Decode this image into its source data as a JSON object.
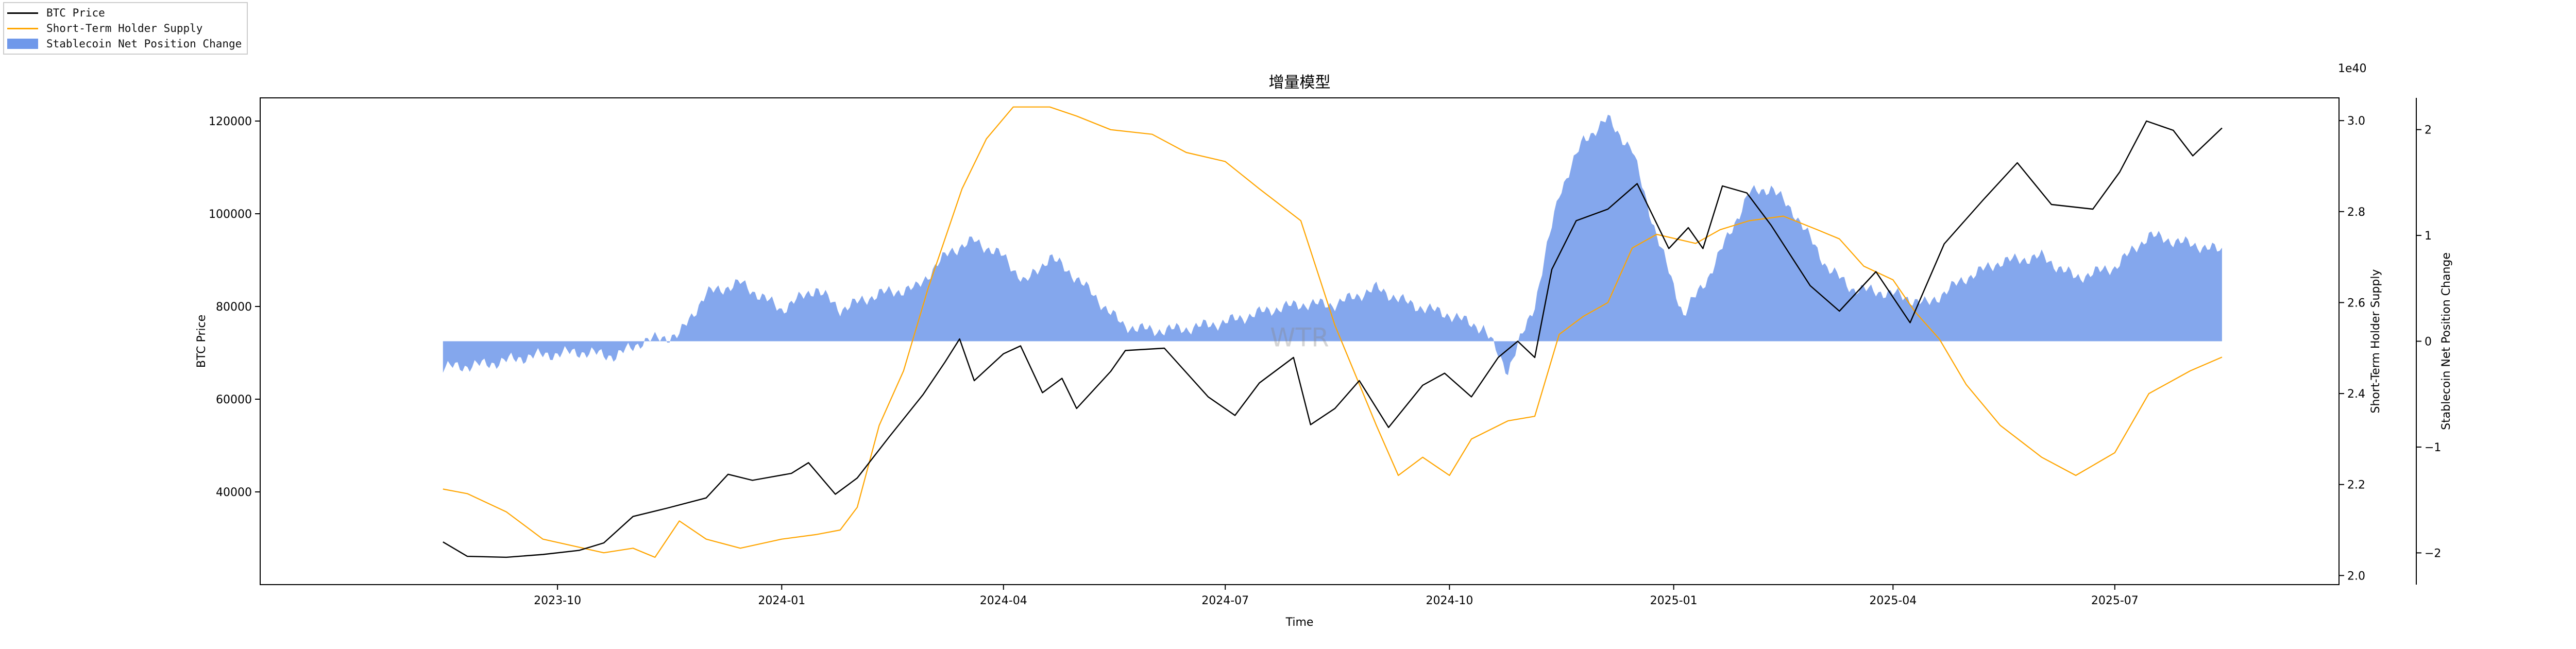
{
  "chart_data": {
    "type": "line",
    "title": "增量模型",
    "xlabel": "Time",
    "ylabel_left": "BTC Price",
    "ylabel_right1": "Short-Term Holder Supply",
    "ylabel_right2": "Stablecoin Net Position Change",
    "offset_label": "1e40",
    "x_ticks": [
      "2023-10",
      "2024-01",
      "2024-04",
      "2024-07",
      "2024-10",
      "2025-01",
      "2025-04",
      "2025-07"
    ],
    "xlim": [
      "2023-06-01",
      "2025-10-01"
    ],
    "y_left_lim": [
      20000,
      125000
    ],
    "y_left_ticks": [
      40000,
      60000,
      80000,
      100000,
      120000
    ],
    "y_right1_lim": [
      1.98,
      3.05
    ],
    "y_right1_ticks": [
      2.0,
      2.2,
      2.4,
      2.6,
      2.8,
      3.0
    ],
    "y_right2_lim": [
      -2.3,
      2.3
    ],
    "y_right2_ticks": [
      -2,
      -1,
      0,
      1,
      2
    ],
    "grid": false,
    "legend_position": "top-left",
    "watermark": "WTR",
    "series": [
      {
        "name": "BTC Price",
        "axis": "left",
        "color": "#000000",
        "points": [
          [
            "2023-08-15",
            29200
          ],
          [
            "2023-08-25",
            26100
          ],
          [
            "2023-09-10",
            25900
          ],
          [
            "2023-09-25",
            26500
          ],
          [
            "2023-10-10",
            27400
          ],
          [
            "2023-10-20",
            29000
          ],
          [
            "2023-11-01",
            34700
          ],
          [
            "2023-11-15",
            36500
          ],
          [
            "2023-12-01",
            38700
          ],
          [
            "2023-12-10",
            43800
          ],
          [
            "2023-12-20",
            42500
          ],
          [
            "2024-01-05",
            44000
          ],
          [
            "2024-01-12",
            46300
          ],
          [
            "2024-01-23",
            39500
          ],
          [
            "2024-02-01",
            43000
          ],
          [
            "2024-02-14",
            51800
          ],
          [
            "2024-02-28",
            61000
          ],
          [
            "2024-03-08",
            68000
          ],
          [
            "2024-03-14",
            73000
          ],
          [
            "2024-03-20",
            64000
          ],
          [
            "2024-04-01",
            69800
          ],
          [
            "2024-04-08",
            71500
          ],
          [
            "2024-04-17",
            61400
          ],
          [
            "2024-04-25",
            64500
          ],
          [
            "2024-05-01",
            58000
          ],
          [
            "2024-05-15",
            66000
          ],
          [
            "2024-05-21",
            70500
          ],
          [
            "2024-06-06",
            71000
          ],
          [
            "2024-06-24",
            60500
          ],
          [
            "2024-07-05",
            56500
          ],
          [
            "2024-07-15",
            63500
          ],
          [
            "2024-07-29",
            69000
          ],
          [
            "2024-08-05",
            54500
          ],
          [
            "2024-08-15",
            58000
          ],
          [
            "2024-08-25",
            64000
          ],
          [
            "2024-09-06",
            53900
          ],
          [
            "2024-09-20",
            63000
          ],
          [
            "2024-09-29",
            65600
          ],
          [
            "2024-10-10",
            60500
          ],
          [
            "2024-10-21",
            69000
          ],
          [
            "2024-10-29",
            72500
          ],
          [
            "2024-11-05",
            69000
          ],
          [
            "2024-11-12",
            88000
          ],
          [
            "2024-11-22",
            98500
          ],
          [
            "2024-12-05",
            101000
          ],
          [
            "2024-12-17",
            106500
          ],
          [
            "2024-12-30",
            92500
          ],
          [
            "2025-01-07",
            97000
          ],
          [
            "2025-01-13",
            92500
          ],
          [
            "2025-01-21",
            106000
          ],
          [
            "2025-01-31",
            104500
          ],
          [
            "2025-02-10",
            97500
          ],
          [
            "2025-02-26",
            84500
          ],
          [
            "2025-03-10",
            79000
          ],
          [
            "2025-03-25",
            87500
          ],
          [
            "2025-04-08",
            76500
          ],
          [
            "2025-04-22",
            93500
          ],
          [
            "2025-05-08",
            103000
          ],
          [
            "2025-05-22",
            111000
          ],
          [
            "2025-06-05",
            102000
          ],
          [
            "2025-06-22",
            101000
          ],
          [
            "2025-07-03",
            109000
          ],
          [
            "2025-07-14",
            120000
          ],
          [
            "2025-07-25",
            118000
          ],
          [
            "2025-08-02",
            112500
          ],
          [
            "2025-08-14",
            118500
          ]
        ]
      },
      {
        "name": "Short-Term Holder Supply",
        "axis": "right1",
        "color": "#ffa500",
        "points": [
          [
            "2023-08-15",
            2.19
          ],
          [
            "2023-08-25",
            2.18
          ],
          [
            "2023-09-10",
            2.14
          ],
          [
            "2023-09-25",
            2.08
          ],
          [
            "2023-10-20",
            2.05
          ],
          [
            "2023-11-01",
            2.06
          ],
          [
            "2023-11-10",
            2.04
          ],
          [
            "2023-11-20",
            2.12
          ],
          [
            "2023-12-01",
            2.08
          ],
          [
            "2023-12-15",
            2.06
          ],
          [
            "2024-01-01",
            2.08
          ],
          [
            "2024-01-15",
            2.09
          ],
          [
            "2024-01-25",
            2.1
          ],
          [
            "2024-02-01",
            2.15
          ],
          [
            "2024-02-10",
            2.33
          ],
          [
            "2024-02-20",
            2.45
          ],
          [
            "2024-03-01",
            2.63
          ],
          [
            "2024-03-15",
            2.85
          ],
          [
            "2024-03-25",
            2.96
          ],
          [
            "2024-04-05",
            3.03
          ],
          [
            "2024-04-20",
            3.03
          ],
          [
            "2024-05-01",
            3.01
          ],
          [
            "2024-05-15",
            2.98
          ],
          [
            "2024-06-01",
            2.97
          ],
          [
            "2024-06-15",
            2.93
          ],
          [
            "2024-07-01",
            2.91
          ],
          [
            "2024-07-15",
            2.85
          ],
          [
            "2024-08-01",
            2.78
          ],
          [
            "2024-08-15",
            2.55
          ],
          [
            "2024-09-01",
            2.33
          ],
          [
            "2024-09-10",
            2.22
          ],
          [
            "2024-09-20",
            2.26
          ],
          [
            "2024-10-01",
            2.22
          ],
          [
            "2024-10-10",
            2.3
          ],
          [
            "2024-10-25",
            2.34
          ],
          [
            "2024-11-05",
            2.35
          ],
          [
            "2024-11-15",
            2.53
          ],
          [
            "2024-11-25",
            2.57
          ],
          [
            "2024-12-05",
            2.6
          ],
          [
            "2024-12-15",
            2.72
          ],
          [
            "2024-12-25",
            2.75
          ],
          [
            "2025-01-10",
            2.73
          ],
          [
            "2025-01-20",
            2.76
          ],
          [
            "2025-02-01",
            2.78
          ],
          [
            "2025-02-15",
            2.79
          ],
          [
            "2025-03-01",
            2.76
          ],
          [
            "2025-03-10",
            2.74
          ],
          [
            "2025-03-20",
            2.68
          ],
          [
            "2025-04-01",
            2.65
          ],
          [
            "2025-04-10",
            2.58
          ],
          [
            "2025-04-20",
            2.52
          ],
          [
            "2025-05-01",
            2.42
          ],
          [
            "2025-05-15",
            2.33
          ],
          [
            "2025-06-01",
            2.26
          ],
          [
            "2025-06-15",
            2.22
          ],
          [
            "2025-07-01",
            2.27
          ],
          [
            "2025-07-15",
            2.4
          ],
          [
            "2025-08-01",
            2.45
          ],
          [
            "2025-08-14",
            2.48
          ]
        ]
      },
      {
        "name": "Stablecoin Net Position Change",
        "axis": "right2",
        "type": "area",
        "color": "#6f98ea",
        "points": [
          [
            "2023-08-15",
            -0.25
          ],
          [
            "2023-09-01",
            -0.22
          ],
          [
            "2023-09-20",
            -0.14
          ],
          [
            "2023-10-10",
            -0.1
          ],
          [
            "2023-10-25",
            -0.14
          ],
          [
            "2023-11-05",
            0.0
          ],
          [
            "2023-11-20",
            0.06
          ],
          [
            "2023-12-01",
            0.45
          ],
          [
            "2023-12-15",
            0.55
          ],
          [
            "2024-01-01",
            0.3
          ],
          [
            "2024-01-15",
            0.5
          ],
          [
            "2024-01-25",
            0.3
          ],
          [
            "2024-02-10",
            0.45
          ],
          [
            "2024-02-25",
            0.5
          ],
          [
            "2024-03-10",
            0.85
          ],
          [
            "2024-03-20",
            0.95
          ],
          [
            "2024-04-01",
            0.8
          ],
          [
            "2024-04-10",
            0.55
          ],
          [
            "2024-04-20",
            0.8
          ],
          [
            "2024-05-01",
            0.6
          ],
          [
            "2024-05-20",
            0.15
          ],
          [
            "2024-06-01",
            0.1
          ],
          [
            "2024-06-15",
            0.12
          ],
          [
            "2024-07-01",
            0.18
          ],
          [
            "2024-07-20",
            0.3
          ],
          [
            "2024-08-01",
            0.35
          ],
          [
            "2024-08-15",
            0.35
          ],
          [
            "2024-09-01",
            0.5
          ],
          [
            "2024-09-15",
            0.35
          ],
          [
            "2024-10-01",
            0.25
          ],
          [
            "2024-10-15",
            0.12
          ],
          [
            "2024-10-25",
            -0.28
          ],
          [
            "2024-11-05",
            0.35
          ],
          [
            "2024-11-15",
            1.4
          ],
          [
            "2024-11-25",
            1.9
          ],
          [
            "2024-12-05",
            2.1
          ],
          [
            "2024-12-15",
            1.8
          ],
          [
            "2024-12-25",
            1.0
          ],
          [
            "2025-01-05",
            0.25
          ],
          [
            "2025-01-15",
            0.6
          ],
          [
            "2025-02-01",
            1.4
          ],
          [
            "2025-02-10",
            1.45
          ],
          [
            "2025-02-20",
            1.2
          ],
          [
            "2025-03-05",
            0.7
          ],
          [
            "2025-03-15",
            0.5
          ],
          [
            "2025-04-01",
            0.45
          ],
          [
            "2025-04-15",
            0.35
          ],
          [
            "2025-05-01",
            0.6
          ],
          [
            "2025-05-15",
            0.75
          ],
          [
            "2025-06-01",
            0.8
          ],
          [
            "2025-06-15",
            0.6
          ],
          [
            "2025-07-01",
            0.7
          ],
          [
            "2025-07-15",
            1.0
          ],
          [
            "2025-07-25",
            0.95
          ],
          [
            "2025-08-05",
            0.9
          ],
          [
            "2025-08-14",
            0.85
          ]
        ]
      }
    ]
  }
}
